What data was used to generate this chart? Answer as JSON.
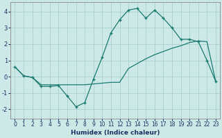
{
  "xlabel": "Humidex (Indice chaleur)",
  "ylabel": "",
  "xlim": [
    -0.5,
    23.5
  ],
  "ylim": [
    -2.6,
    4.6
  ],
  "xticks": [
    0,
    1,
    2,
    3,
    4,
    5,
    6,
    7,
    8,
    9,
    10,
    11,
    12,
    13,
    14,
    15,
    16,
    17,
    18,
    19,
    20,
    21,
    22,
    23
  ],
  "yticks": [
    -2,
    -1,
    0,
    1,
    2,
    3,
    4
  ],
  "bg_color": "#cce9e7",
  "line_color": "#1a7a6e",
  "grid_color": "#aed4d0",
  "line1_x": [
    0,
    1,
    2,
    3,
    4,
    5,
    6,
    7,
    8,
    9,
    10,
    11,
    12,
    13,
    14,
    15,
    16,
    17,
    18,
    19,
    20,
    21,
    22,
    23
  ],
  "line1_y": [
    0.6,
    0.05,
    -0.05,
    -0.6,
    -0.6,
    -0.55,
    -1.2,
    -1.85,
    -1.6,
    -0.15,
    1.2,
    2.7,
    3.5,
    4.1,
    4.2,
    3.6,
    4.1,
    3.6,
    3.0,
    2.3,
    2.3,
    2.15,
    1.0,
    -0.3
  ],
  "line2_x": [
    0,
    1,
    2,
    3,
    4,
    5,
    6,
    7,
    8,
    9,
    10,
    11,
    12,
    13,
    14,
    15,
    16,
    17,
    18,
    19,
    20,
    21,
    22,
    23
  ],
  "line2_y": [
    0.6,
    0.05,
    -0.05,
    -0.5,
    -0.5,
    -0.5,
    -0.5,
    -0.5,
    -0.5,
    -0.45,
    -0.4,
    -0.35,
    -0.35,
    0.5,
    0.8,
    1.1,
    1.35,
    1.55,
    1.75,
    1.9,
    2.1,
    2.2,
    2.15,
    -0.3
  ]
}
